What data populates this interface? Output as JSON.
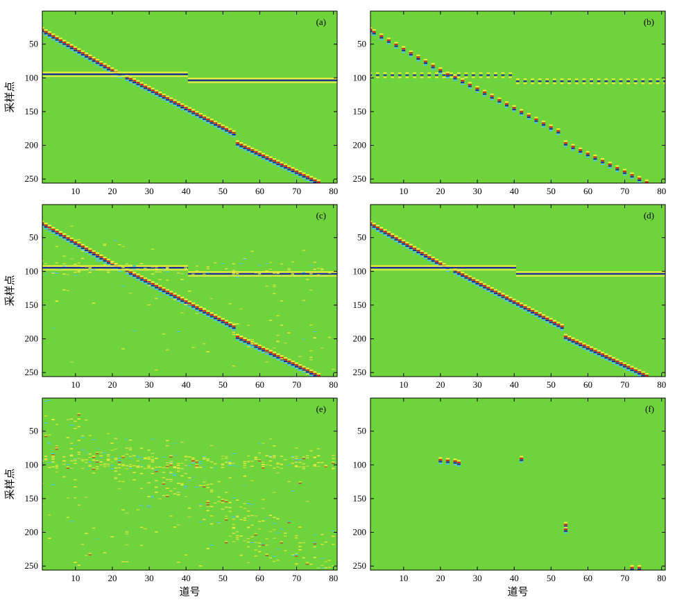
{
  "chart_data": [
    {
      "type": "heatmap",
      "panel_label": "(a)",
      "xlim": [
        1,
        81
      ],
      "ylim": [
        256,
        1
      ],
      "xticks": [
        10,
        20,
        30,
        40,
        50,
        60,
        70,
        80
      ],
      "yticks": [
        50,
        100,
        150,
        200,
        250
      ],
      "ylabel": "采样点",
      "xlabel": "",
      "events": {
        "diagonal": [
          {
            "x": [
              1,
              22
            ],
            "y": [
              30,
              96
            ]
          },
          {
            "x": [
              24,
              53
            ],
            "y": [
              100,
              183
            ]
          },
          {
            "x": [
              54,
              76
            ],
            "y": [
              198,
              256
            ]
          }
        ],
        "horizontal": [
          {
            "x": [
              1,
              40
            ],
            "y": 95
          },
          {
            "x": [
              41,
              81
            ],
            "y": 104
          }
        ],
        "dashed": false,
        "noise": 0
      }
    },
    {
      "type": "heatmap",
      "panel_label": "(b)",
      "xlim": [
        1,
        81
      ],
      "ylim": [
        256,
        1
      ],
      "xticks": [
        10,
        20,
        30,
        40,
        50,
        60,
        70,
        80
      ],
      "yticks": [
        50,
        100,
        150,
        200,
        250
      ],
      "ylabel": "",
      "xlabel": "",
      "events": {
        "diagonal": [
          {
            "x": [
              1,
              22
            ],
            "y": [
              30,
              96
            ]
          },
          {
            "x": [
              24,
              53
            ],
            "y": [
              100,
              183
            ]
          },
          {
            "x": [
              54,
              76
            ],
            "y": [
              198,
              256
            ]
          }
        ],
        "horizontal": [
          {
            "x": [
              1,
              40
            ],
            "y": 95
          },
          {
            "x": [
              41,
              81
            ],
            "y": 104
          }
        ],
        "dashed": true,
        "noise": 0
      }
    },
    {
      "type": "heatmap",
      "panel_label": "(c)",
      "xlim": [
        1,
        81
      ],
      "ylim": [
        256,
        1
      ],
      "xticks": [
        10,
        20,
        30,
        40,
        50,
        60,
        70,
        80
      ],
      "yticks": [
        50,
        100,
        150,
        200,
        250
      ],
      "ylabel": "采样点",
      "xlabel": "",
      "events": {
        "diagonal": [
          {
            "x": [
              1,
              22
            ],
            "y": [
              30,
              96
            ]
          },
          {
            "x": [
              24,
              53
            ],
            "y": [
              100,
              183
            ]
          },
          {
            "x": [
              54,
              76
            ],
            "y": [
              198,
              256
            ]
          }
        ],
        "horizontal": [
          {
            "x": [
              1,
              40
            ],
            "y": 95
          },
          {
            "x": [
              41,
              81
            ],
            "y": 104
          }
        ],
        "dashed": false,
        "noise": 1
      }
    },
    {
      "type": "heatmap",
      "panel_label": "(d)",
      "xlim": [
        1,
        81
      ],
      "ylim": [
        256,
        1
      ],
      "xticks": [
        10,
        20,
        30,
        40,
        50,
        60,
        70,
        80
      ],
      "yticks": [
        50,
        100,
        150,
        200,
        250
      ],
      "ylabel": "",
      "xlabel": "",
      "events": {
        "diagonal": [
          {
            "x": [
              1,
              22
            ],
            "y": [
              30,
              96
            ]
          },
          {
            "x": [
              24,
              53
            ],
            "y": [
              100,
              183
            ]
          },
          {
            "x": [
              54,
              76
            ],
            "y": [
              198,
              256
            ]
          }
        ],
        "horizontal": [
          {
            "x": [
              1,
              40
            ],
            "y": 95
          },
          {
            "x": [
              41,
              81
            ],
            "y": 104
          }
        ],
        "dashed": false,
        "noise": 0
      }
    },
    {
      "type": "heatmap",
      "panel_label": "(e)",
      "xlim": [
        1,
        81
      ],
      "ylim": [
        256,
        1
      ],
      "xticks": [
        10,
        20,
        30,
        40,
        50,
        60,
        70,
        80
      ],
      "yticks": [
        50,
        100,
        150,
        200,
        250
      ],
      "ylabel": "采样点",
      "xlabel": "道号",
      "events": {
        "diagonal": [],
        "horizontal": [],
        "dashed": false,
        "noise": 2
      }
    },
    {
      "type": "heatmap",
      "panel_label": "(f)",
      "xlim": [
        1,
        81
      ],
      "ylim": [
        256,
        1
      ],
      "xticks": [
        10,
        20,
        30,
        40,
        50,
        60,
        70,
        80
      ],
      "yticks": [
        50,
        100,
        150,
        200,
        250
      ],
      "ylabel": "",
      "xlabel": "道号",
      "events": {
        "diagonal": [],
        "horizontal": [],
        "dashed": false,
        "noise": 0,
        "spikes": [
          {
            "x": 20,
            "y": 94
          },
          {
            "x": 22,
            "y": 95
          },
          {
            "x": 24,
            "y": 96
          },
          {
            "x": 25,
            "y": 98
          },
          {
            "x": 42,
            "y": 92
          },
          {
            "x": 54,
            "y": 190
          },
          {
            "x": 54,
            "y": 197
          },
          {
            "x": 72,
            "y": 254
          },
          {
            "x": 74,
            "y": 254
          }
        ]
      }
    }
  ],
  "colors": {
    "background": "#6fd33c",
    "positive_strong": "#cc2a1c",
    "negative_strong": "#1f2a9a",
    "positive_weak": "#f3ee3c",
    "negative_weak": "#4fc8d8",
    "halo": "#d9e94a"
  }
}
